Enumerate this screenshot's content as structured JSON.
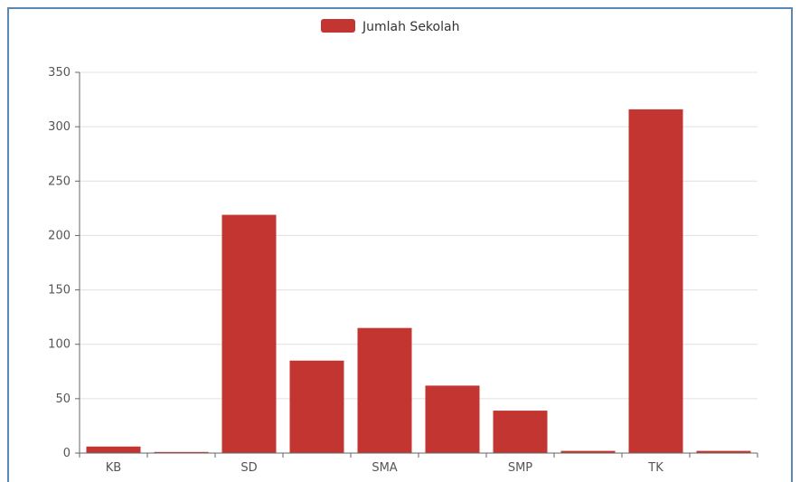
{
  "chart_data": {
    "type": "bar",
    "categories": [
      "KB",
      "",
      "SD",
      "",
      "SMA",
      "",
      "SMP",
      "",
      "TK",
      ""
    ],
    "x_tick_labels": [
      "KB",
      "SD",
      "SMA",
      "SMP",
      "TK"
    ],
    "series": [
      {
        "name": "Jumlah Sekolah",
        "values": [
          6,
          1,
          219,
          85,
          115,
          62,
          39,
          2,
          316,
          2
        ]
      }
    ],
    "ylim": [
      0,
      350
    ],
    "yticks": [
      0,
      50,
      100,
      150,
      200,
      250,
      300,
      350
    ],
    "grid": true,
    "legend_position": "top-center",
    "bar_color": "#c23531"
  }
}
